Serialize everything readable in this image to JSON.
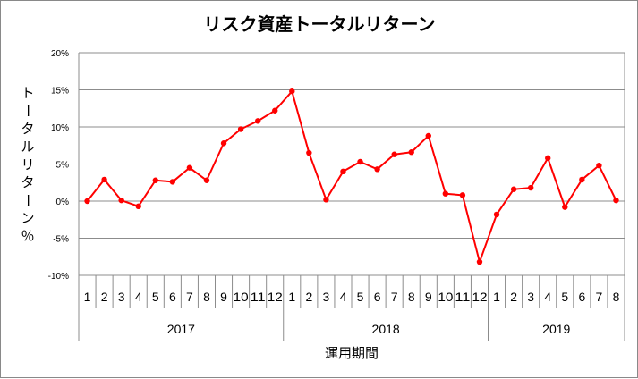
{
  "chart_data": {
    "type": "line",
    "title": "リスク資産トータルリターン",
    "xlabel": "運用期間",
    "ylabel": "トータルリターン％",
    "ylim": [
      -10,
      20
    ],
    "yticks": [
      -10,
      -5,
      0,
      5,
      10,
      15,
      20
    ],
    "ytick_labels": [
      "-10%",
      "-5%",
      "0%",
      "5%",
      "10%",
      "15%",
      "20%"
    ],
    "grid": true,
    "legend": "none",
    "line_color": "#ff0000",
    "categories": [
      "1",
      "2",
      "3",
      "4",
      "5",
      "6",
      "7",
      "8",
      "9",
      "10",
      "11",
      "12",
      "1",
      "2",
      "3",
      "4",
      "5",
      "6",
      "7",
      "8",
      "9",
      "10",
      "11",
      "12",
      "1",
      "2",
      "3",
      "4",
      "5",
      "6",
      "7",
      "8"
    ],
    "years": [
      {
        "label": "2017",
        "start": 0,
        "count": 12
      },
      {
        "label": "2018",
        "start": 12,
        "count": 12
      },
      {
        "label": "2019",
        "start": 24,
        "count": 8
      }
    ],
    "series": [
      {
        "values": [
          0.0,
          2.9,
          0.1,
          -0.7,
          2.8,
          2.6,
          4.5,
          2.8,
          7.8,
          9.7,
          10.8,
          12.2,
          14.8,
          6.5,
          0.2,
          4.0,
          5.3,
          4.3,
          6.3,
          6.6,
          8.8,
          1.0,
          0.8,
          -8.2,
          -1.8,
          1.6,
          1.8,
          5.8,
          -0.8,
          2.9,
          4.8,
          0.1
        ]
      }
    ]
  }
}
